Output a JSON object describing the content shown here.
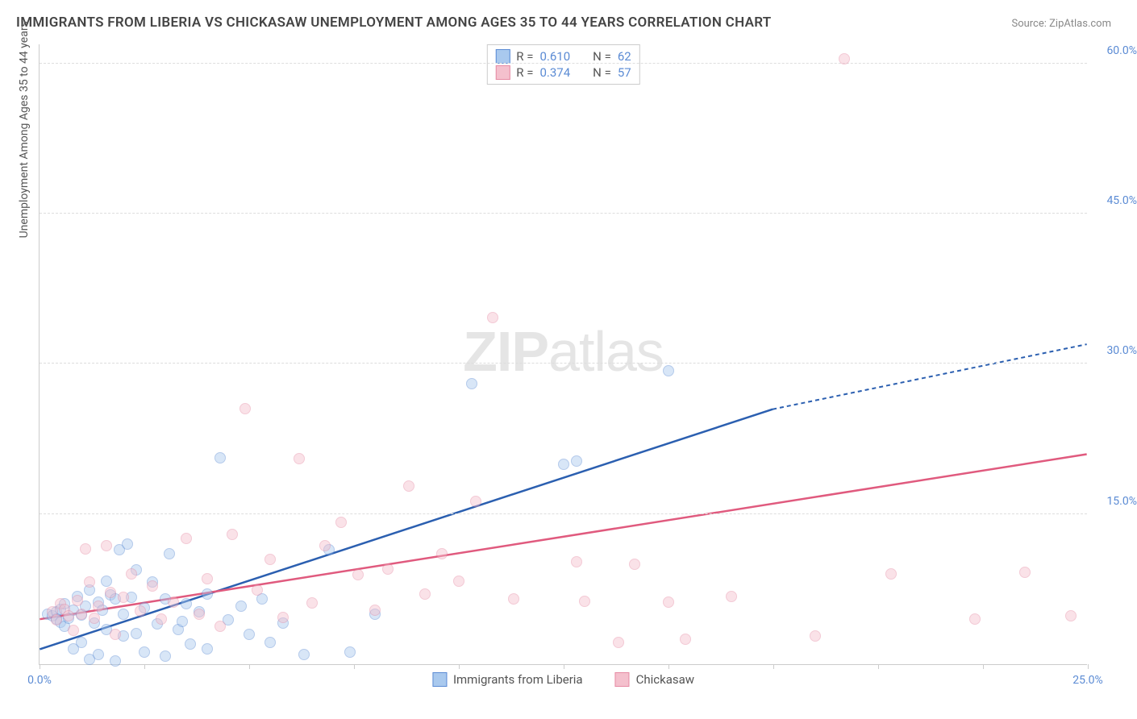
{
  "title": "IMMIGRANTS FROM LIBERIA VS CHICKASAW UNEMPLOYMENT AMONG AGES 35 TO 44 YEARS CORRELATION CHART",
  "source": "Source: ZipAtlas.com",
  "y_axis_label": "Unemployment Among Ages 35 to 44 years",
  "watermark_bold": "ZIP",
  "watermark_rest": "atlas",
  "chart": {
    "type": "scatter",
    "xlim": [
      0,
      25
    ],
    "ylim": [
      0,
      62
    ],
    "x_ticks": [
      0,
      2.5,
      5,
      7.5,
      10,
      12.5,
      15,
      17.5,
      20,
      22.5,
      25
    ],
    "x_tick_labels": {
      "0": "0.0%",
      "25": "25.0%"
    },
    "y_ticks": [
      15,
      30,
      45,
      60
    ],
    "y_tick_labels": {
      "15": "15.0%",
      "30": "30.0%",
      "45": "45.0%",
      "60": "60.0%"
    },
    "grid_color": "#dddddd",
    "background_color": "#ffffff",
    "marker_radius": 7,
    "marker_opacity": 0.45,
    "series": [
      {
        "name": "Immigrants from Liberia",
        "fill": "#a9c9ee",
        "stroke": "#5b8bd4",
        "line_color": "#2b5fb0",
        "R": "0.610",
        "N": "62",
        "trend": {
          "x1": 0,
          "y1": 1.5,
          "x2": 17.5,
          "y2": 25.5,
          "dash_x2": 25,
          "dash_y2": 32.0
        },
        "points": [
          [
            0.2,
            5
          ],
          [
            0.3,
            4.8
          ],
          [
            0.4,
            5.2
          ],
          [
            0.4,
            4.5
          ],
          [
            0.5,
            5.5
          ],
          [
            0.5,
            4.2
          ],
          [
            0.6,
            3.8
          ],
          [
            0.6,
            6
          ],
          [
            0.7,
            4.6
          ],
          [
            0.8,
            5.4
          ],
          [
            0.8,
            1.5
          ],
          [
            0.9,
            6.8
          ],
          [
            1.0,
            4.9
          ],
          [
            1.0,
            2.2
          ],
          [
            1.1,
            5.8
          ],
          [
            1.2,
            0.5
          ],
          [
            1.2,
            7.4
          ],
          [
            1.3,
            4.1
          ],
          [
            1.4,
            6.2
          ],
          [
            1.4,
            1.0
          ],
          [
            1.5,
            5.4
          ],
          [
            1.6,
            3.5
          ],
          [
            1.6,
            8.3
          ],
          [
            1.7,
            6.9
          ],
          [
            1.8,
            6.5
          ],
          [
            1.8,
            0.3
          ],
          [
            1.9,
            11.4
          ],
          [
            2.0,
            5.0
          ],
          [
            2.0,
            2.8
          ],
          [
            2.1,
            12.0
          ],
          [
            2.2,
            6.7
          ],
          [
            2.3,
            3.1
          ],
          [
            2.3,
            9.4
          ],
          [
            2.5,
            5.6
          ],
          [
            2.5,
            1.2
          ],
          [
            2.7,
            8.2
          ],
          [
            2.8,
            4.0
          ],
          [
            3.0,
            6.5
          ],
          [
            3.0,
            0.8
          ],
          [
            3.1,
            11.0
          ],
          [
            3.3,
            3.5
          ],
          [
            3.4,
            4.3
          ],
          [
            3.5,
            6.0
          ],
          [
            3.6,
            2.0
          ],
          [
            3.8,
            5.2
          ],
          [
            4.0,
            7.0
          ],
          [
            4.0,
            1.5
          ],
          [
            4.3,
            20.6
          ],
          [
            4.5,
            4.4
          ],
          [
            4.8,
            5.8
          ],
          [
            5.0,
            3.0
          ],
          [
            5.3,
            6.5
          ],
          [
            5.5,
            2.2
          ],
          [
            5.8,
            4.1
          ],
          [
            6.3,
            1.0
          ],
          [
            6.9,
            11.4
          ],
          [
            7.4,
            1.2
          ],
          [
            8.0,
            5.0
          ],
          [
            10.3,
            28.0
          ],
          [
            12.5,
            20.0
          ],
          [
            12.8,
            20.3
          ],
          [
            15.0,
            29.3
          ]
        ]
      },
      {
        "name": "Chickasaw",
        "fill": "#f4c0cd",
        "stroke": "#e68aa3",
        "line_color": "#e05a7e",
        "R": "0.374",
        "N": "57",
        "trend": {
          "x1": 0,
          "y1": 4.5,
          "x2": 25,
          "y2": 21.0
        },
        "points": [
          [
            0.3,
            5.2
          ],
          [
            0.4,
            4.4
          ],
          [
            0.5,
            6.0
          ],
          [
            0.6,
            5.5
          ],
          [
            0.7,
            4.8
          ],
          [
            0.8,
            3.4
          ],
          [
            0.9,
            6.4
          ],
          [
            1.0,
            5.0
          ],
          [
            1.1,
            11.5
          ],
          [
            1.2,
            8.2
          ],
          [
            1.3,
            4.6
          ],
          [
            1.4,
            5.8
          ],
          [
            1.6,
            11.8
          ],
          [
            1.7,
            7.2
          ],
          [
            1.8,
            3.0
          ],
          [
            2.0,
            6.7
          ],
          [
            2.2,
            9.0
          ],
          [
            2.4,
            5.3
          ],
          [
            2.7,
            7.8
          ],
          [
            2.9,
            4.5
          ],
          [
            3.2,
            6.2
          ],
          [
            3.5,
            12.6
          ],
          [
            3.8,
            5.0
          ],
          [
            4.0,
            8.5
          ],
          [
            4.3,
            3.8
          ],
          [
            4.6,
            13.0
          ],
          [
            4.9,
            25.5
          ],
          [
            5.2,
            7.4
          ],
          [
            5.5,
            10.5
          ],
          [
            5.8,
            4.7
          ],
          [
            6.2,
            20.5
          ],
          [
            6.5,
            6.1
          ],
          [
            6.8,
            11.8
          ],
          [
            7.2,
            14.2
          ],
          [
            7.6,
            8.9
          ],
          [
            8.0,
            5.4
          ],
          [
            8.3,
            9.5
          ],
          [
            8.8,
            17.8
          ],
          [
            9.2,
            7.0
          ],
          [
            9.6,
            11.0
          ],
          [
            10.0,
            8.3
          ],
          [
            10.4,
            16.3
          ],
          [
            10.8,
            34.6
          ],
          [
            11.3,
            6.5
          ],
          [
            12.8,
            10.2
          ],
          [
            13.0,
            6.3
          ],
          [
            13.8,
            2.2
          ],
          [
            14.2,
            10.0
          ],
          [
            15.0,
            6.2
          ],
          [
            15.4,
            2.5
          ],
          [
            16.5,
            6.8
          ],
          [
            18.5,
            2.8
          ],
          [
            19.2,
            60.5
          ],
          [
            20.3,
            9.0
          ],
          [
            22.3,
            4.5
          ],
          [
            23.5,
            9.2
          ],
          [
            24.6,
            4.8
          ]
        ]
      }
    ]
  },
  "r_legend": {
    "rows": [
      {
        "swatch_fill": "#a9c9ee",
        "swatch_stroke": "#5b8bd4",
        "r_label": "R =",
        "r_value": "0.610",
        "n_label": "N =",
        "n_value": "62"
      },
      {
        "swatch_fill": "#f4c0cd",
        "swatch_stroke": "#e68aa3",
        "r_label": "R =",
        "r_value": "0.374",
        "n_label": "N =",
        "n_value": "57"
      }
    ]
  },
  "bottom_legend": [
    {
      "swatch_fill": "#a9c9ee",
      "swatch_stroke": "#5b8bd4",
      "label": "Immigrants from Liberia"
    },
    {
      "swatch_fill": "#f4c0cd",
      "swatch_stroke": "#e68aa3",
      "label": "Chickasaw"
    }
  ]
}
